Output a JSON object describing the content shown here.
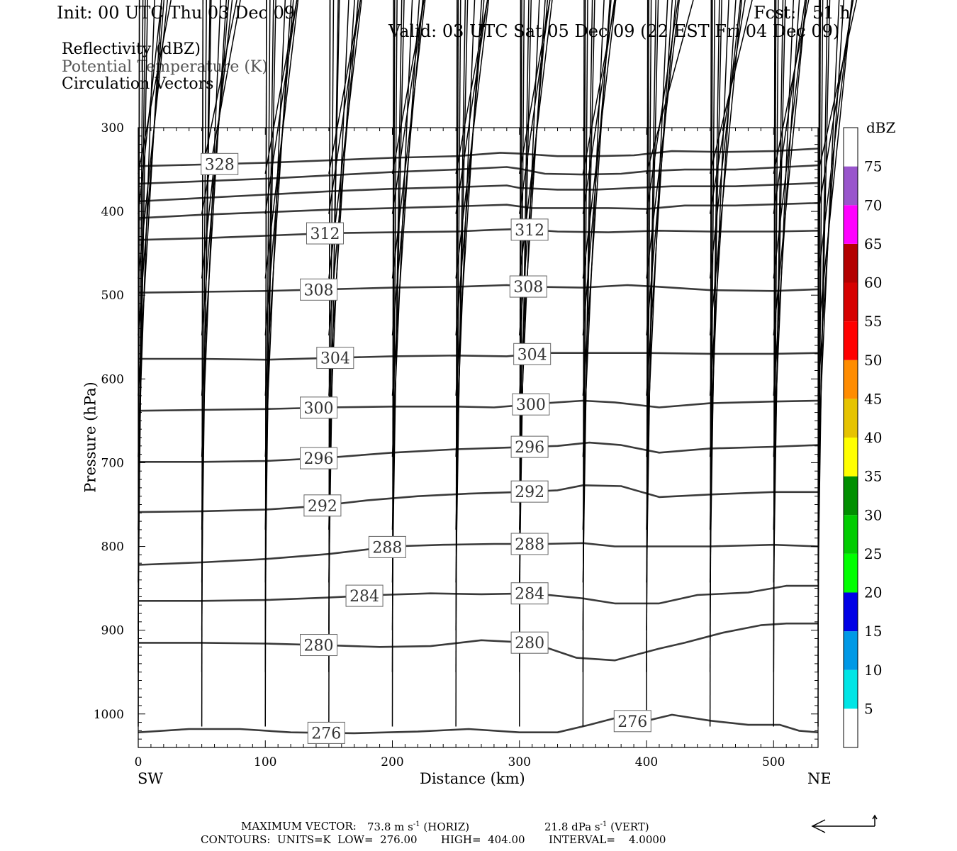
{
  "header": {
    "init": "Init: 00 UTC Thu 03 Dec 09",
    "fcst": "Fcst:   51 h",
    "valid": "Valid: 03 UTC Sat 05 Dec 09 (22 EST Fri 04 Dec 09)"
  },
  "legend": {
    "line1": "Reflectivity (dBZ)",
    "line2": "Potential Temperature (K)",
    "line3": "Circulation Vectors"
  },
  "footer": {
    "max_vector_label": "MAXIMUM VECTOR:",
    "max_vector_h": "73.8 m s",
    "horiz_tag": "(HORIZ)",
    "max_vector_v": "21.8 dPa s",
    "vert_tag": "(VERT)",
    "exp": "-1",
    "contours": "CONTOURS:  UNITS=K  LOW=  276.00       HIGH=  404.00       INTERVAL=    4.0000"
  },
  "colors": {
    "contour": "#3a3a3a",
    "arrow": "#000000",
    "scale": [
      "#ffffff",
      "#00e5e5",
      "#0099e6",
      "#0000e6",
      "#00ff00",
      "#00cc00",
      "#008f00",
      "#ffff00",
      "#e6c300",
      "#ff8c00",
      "#ff0000",
      "#d60000",
      "#b30000",
      "#ff00ff",
      "#9955cc",
      "#ffffff"
    ]
  },
  "chart_data": {
    "type": "vertical cross-section (contour + vectors)",
    "xlabel": "Distance (km)",
    "ylabel": "Pressure (hPa)",
    "x_end_labels": {
      "left": "SW",
      "right": "NE"
    },
    "xlim": [
      0,
      535
    ],
    "ylim": [
      300,
      1040
    ],
    "x_ticks": [
      0,
      100,
      200,
      300,
      400,
      500
    ],
    "y_ticks": [
      300,
      400,
      500,
      600,
      700,
      800,
      900,
      1000
    ],
    "colorbar": {
      "title": "dBZ",
      "levels": [
        "5",
        "10",
        "15",
        "20",
        "25",
        "30",
        "35",
        "40",
        "45",
        "50",
        "55",
        "60",
        "65",
        "70",
        "75"
      ]
    },
    "contours": [
      {
        "label": "328",
        "label_at": [
          64
        ],
        "points": [
          [
            0,
            346
          ],
          [
            50,
            344
          ],
          [
            100,
            342
          ],
          [
            150,
            339
          ],
          [
            200,
            336
          ],
          [
            250,
            334
          ],
          [
            285,
            330
          ],
          [
            300,
            331
          ],
          [
            330,
            334
          ],
          [
            360,
            334
          ],
          [
            390,
            333
          ],
          [
            420,
            328
          ],
          [
            460,
            329
          ],
          [
            500,
            328
          ],
          [
            535,
            325
          ]
        ]
      },
      {
        "label": "",
        "label_at": [],
        "points": [
          [
            0,
            367
          ],
          [
            50,
            364
          ],
          [
            100,
            361
          ],
          [
            150,
            357
          ],
          [
            200,
            353
          ],
          [
            250,
            350
          ],
          [
            290,
            347
          ],
          [
            300,
            349
          ],
          [
            320,
            355
          ],
          [
            350,
            356
          ],
          [
            380,
            355
          ],
          [
            400,
            352
          ],
          [
            430,
            350
          ],
          [
            470,
            350
          ],
          [
            535,
            345
          ]
        ]
      },
      {
        "label": "",
        "label_at": [],
        "points": [
          [
            0,
            388
          ],
          [
            50,
            384
          ],
          [
            100,
            380
          ],
          [
            150,
            376
          ],
          [
            200,
            373
          ],
          [
            250,
            371
          ],
          [
            290,
            369
          ],
          [
            300,
            372
          ],
          [
            330,
            374
          ],
          [
            360,
            374
          ],
          [
            390,
            372
          ],
          [
            420,
            370
          ],
          [
            470,
            370
          ],
          [
            535,
            366
          ]
        ]
      },
      {
        "label": "",
        "label_at": [],
        "points": [
          [
            0,
            408
          ],
          [
            50,
            404
          ],
          [
            100,
            401
          ],
          [
            150,
            398
          ],
          [
            200,
            396
          ],
          [
            250,
            394
          ],
          [
            290,
            392
          ],
          [
            310,
            396
          ],
          [
            340,
            396
          ],
          [
            370,
            396
          ],
          [
            400,
            397
          ],
          [
            430,
            393
          ],
          [
            470,
            393
          ],
          [
            535,
            390
          ]
        ]
      },
      {
        "label": "312",
        "label_at": [
          147,
          308
        ],
        "points": [
          [
            0,
            434
          ],
          [
            50,
            432
          ],
          [
            100,
            429
          ],
          [
            150,
            426
          ],
          [
            200,
            425
          ],
          [
            250,
            424
          ],
          [
            280,
            422
          ],
          [
            300,
            421
          ],
          [
            330,
            424
          ],
          [
            370,
            425
          ],
          [
            410,
            423
          ],
          [
            450,
            424
          ],
          [
            500,
            424
          ],
          [
            535,
            423
          ]
        ]
      },
      {
        "label": "308",
        "label_at": [
          142,
          307
        ],
        "points": [
          [
            0,
            497
          ],
          [
            50,
            496
          ],
          [
            100,
            495
          ],
          [
            150,
            493
          ],
          [
            200,
            491
          ],
          [
            250,
            490
          ],
          [
            290,
            488
          ],
          [
            310,
            490
          ],
          [
            350,
            491
          ],
          [
            385,
            488
          ],
          [
            410,
            490
          ],
          [
            450,
            494
          ],
          [
            500,
            495
          ],
          [
            535,
            493
          ]
        ]
      },
      {
        "label": "304",
        "label_at": [
          155,
          310
        ],
        "points": [
          [
            0,
            576
          ],
          [
            50,
            576
          ],
          [
            100,
            577
          ],
          [
            150,
            575
          ],
          [
            200,
            573
          ],
          [
            250,
            572
          ],
          [
            290,
            573
          ],
          [
            320,
            569
          ],
          [
            360,
            569
          ],
          [
            400,
            569
          ],
          [
            450,
            570
          ],
          [
            500,
            570
          ],
          [
            535,
            569
          ]
        ]
      },
      {
        "label": "300",
        "label_at": [
          142,
          309
        ],
        "points": [
          [
            0,
            638
          ],
          [
            50,
            637
          ],
          [
            100,
            636
          ],
          [
            150,
            634
          ],
          [
            200,
            633
          ],
          [
            250,
            633
          ],
          [
            280,
            634
          ],
          [
            320,
            629
          ],
          [
            350,
            626
          ],
          [
            375,
            628
          ],
          [
            410,
            634
          ],
          [
            450,
            629
          ],
          [
            500,
            627
          ],
          [
            535,
            626
          ]
        ]
      },
      {
        "label": "296",
        "label_at": [
          142,
          308
        ],
        "points": [
          [
            0,
            699
          ],
          [
            50,
            699
          ],
          [
            100,
            698
          ],
          [
            150,
            694
          ],
          [
            200,
            688
          ],
          [
            250,
            684
          ],
          [
            290,
            682
          ],
          [
            330,
            680
          ],
          [
            355,
            676
          ],
          [
            380,
            679
          ],
          [
            410,
            688
          ],
          [
            450,
            683
          ],
          [
            500,
            681
          ],
          [
            535,
            679
          ]
        ]
      },
      {
        "label": "292",
        "label_at": [
          145,
          308
        ],
        "points": [
          [
            0,
            759
          ],
          [
            50,
            758
          ],
          [
            100,
            756
          ],
          [
            140,
            752
          ],
          [
            180,
            745
          ],
          [
            220,
            740
          ],
          [
            260,
            737
          ],
          [
            300,
            735
          ],
          [
            330,
            733
          ],
          [
            350,
            727
          ],
          [
            380,
            728
          ],
          [
            410,
            741
          ],
          [
            450,
            738
          ],
          [
            500,
            735
          ],
          [
            535,
            735
          ]
        ]
      },
      {
        "label": "288",
        "label_at": [
          196,
          308
        ],
        "points": [
          [
            0,
            822
          ],
          [
            50,
            819
          ],
          [
            100,
            815
          ],
          [
            150,
            809
          ],
          [
            200,
            800
          ],
          [
            240,
            798
          ],
          [
            280,
            797
          ],
          [
            320,
            797
          ],
          [
            350,
            796
          ],
          [
            375,
            800
          ],
          [
            410,
            800
          ],
          [
            450,
            800
          ],
          [
            500,
            798
          ],
          [
            535,
            800
          ]
        ]
      },
      {
        "label": "284",
        "label_at": [
          178,
          308
        ],
        "points": [
          [
            0,
            865
          ],
          [
            50,
            865
          ],
          [
            100,
            864
          ],
          [
            150,
            861
          ],
          [
            190,
            858
          ],
          [
            230,
            856
          ],
          [
            270,
            857
          ],
          [
            310,
            856
          ],
          [
            350,
            862
          ],
          [
            375,
            868
          ],
          [
            410,
            868
          ],
          [
            440,
            858
          ],
          [
            480,
            855
          ],
          [
            510,
            847
          ],
          [
            535,
            847
          ]
        ]
      },
      {
        "label": "280",
        "label_at": [
          142,
          308
        ],
        "points": [
          [
            0,
            915
          ],
          [
            50,
            915
          ],
          [
            100,
            916
          ],
          [
            150,
            918
          ],
          [
            190,
            920
          ],
          [
            230,
            919
          ],
          [
            270,
            912
          ],
          [
            310,
            915
          ],
          [
            345,
            933
          ],
          [
            375,
            936
          ],
          [
            410,
            922
          ],
          [
            430,
            915
          ],
          [
            460,
            903
          ],
          [
            490,
            894
          ],
          [
            510,
            892
          ],
          [
            535,
            892
          ]
        ]
      },
      {
        "label": "276",
        "label_at": [
          148,
          389
        ],
        "points": [
          [
            0,
            1022
          ],
          [
            40,
            1018
          ],
          [
            80,
            1018
          ],
          [
            120,
            1022
          ],
          [
            170,
            1023
          ],
          [
            220,
            1021
          ],
          [
            260,
            1018
          ],
          [
            300,
            1022
          ],
          [
            330,
            1022
          ],
          [
            355,
            1013
          ],
          [
            375,
            1005
          ],
          [
            395,
            1010
          ],
          [
            420,
            1001
          ],
          [
            450,
            1008
          ],
          [
            480,
            1013
          ],
          [
            505,
            1013
          ],
          [
            520,
            1020
          ],
          [
            535,
            1022
          ]
        ]
      }
    ],
    "vectors": [
      {
        "p": 355,
        "u": [
          28,
          30,
          27,
          27,
          27,
          27,
          26,
          28,
          40,
          36,
          30,
          33
        ],
        "w": [
          -4,
          -1,
          -1,
          0,
          -2,
          -2,
          -1,
          -2,
          -1,
          -4,
          0,
          0
        ]
      },
      {
        "p": 403,
        "u": [
          20,
          33,
          27,
          27,
          27,
          27,
          26,
          27,
          27,
          30,
          27,
          30
        ],
        "w": [
          0,
          -1,
          -1,
          -1,
          -1,
          -1,
          -1,
          -1,
          -1,
          -2,
          0,
          0
        ]
      },
      {
        "p": 480,
        "u": [
          25,
          26,
          28,
          28,
          28,
          28,
          28,
          28,
          28,
          26,
          28,
          29
        ],
        "w": [
          -2,
          -1,
          -1,
          -1,
          -1,
          -1,
          -1,
          -1,
          -1,
          -2,
          -1,
          -1
        ]
      },
      {
        "p": 548,
        "u": [
          22,
          23,
          24,
          25,
          26,
          24,
          24,
          24,
          25,
          27,
          28,
          29
        ],
        "w": [
          -1,
          -1,
          -1,
          -1,
          -1,
          -1,
          -1,
          -1,
          -1,
          -2,
          -1,
          -1
        ]
      },
      {
        "p": 620,
        "u": [
          20,
          21,
          22,
          22,
          23,
          22,
          22,
          23,
          22,
          22,
          22,
          22
        ],
        "w": [
          -1,
          -1,
          -1,
          -1,
          -1,
          -1,
          -1,
          -1,
          -1,
          -1,
          -1,
          -1
        ]
      },
      {
        "p": 693,
        "u": [
          14,
          16,
          17,
          17,
          17,
          16,
          17,
          18,
          18,
          16,
          17,
          18
        ],
        "w": [
          -1,
          -1,
          -1,
          -1,
          -1,
          -1,
          -1,
          1,
          -1,
          -1,
          -1,
          -1
        ]
      },
      {
        "p": 780,
        "u": [
          8,
          8,
          9,
          9,
          10,
          10,
          10,
          10,
          10,
          10,
          10,
          10
        ],
        "w": [
          0,
          0,
          0,
          1,
          1,
          0,
          0,
          2,
          2,
          0,
          0,
          0
        ]
      },
      {
        "p": 843,
        "u": [
          6,
          7,
          7,
          8,
          8,
          8,
          8,
          8,
          8,
          8,
          8,
          8
        ],
        "w": [
          0,
          0,
          0,
          1,
          1,
          0,
          0,
          2,
          1,
          0,
          0,
          0
        ]
      },
      {
        "p": 900,
        "u": [
          4,
          4,
          4,
          4,
          4,
          4,
          4,
          4,
          4,
          4,
          4,
          4
        ],
        "w": [
          0,
          0,
          0,
          0,
          0,
          0,
          0,
          0,
          0,
          0,
          0,
          0
        ]
      },
      {
        "p": 950,
        "u": [
          1,
          1,
          1,
          1,
          2,
          2,
          2,
          2,
          2,
          2,
          2,
          2
        ],
        "w": [
          0,
          0,
          0,
          0,
          0,
          0,
          0,
          0,
          0,
          0,
          0,
          0
        ]
      },
      {
        "p": 1015,
        "u": [
          1,
          1,
          1,
          1,
          1,
          1,
          1,
          1,
          1,
          1,
          1,
          1
        ],
        "w": [
          0,
          0,
          0,
          0,
          0,
          0,
          0,
          0,
          0,
          0,
          0,
          0
        ]
      }
    ],
    "vector_x": [
      0,
      50,
      100,
      150,
      200,
      250,
      300,
      350,
      400,
      450,
      500,
      535
    ]
  }
}
